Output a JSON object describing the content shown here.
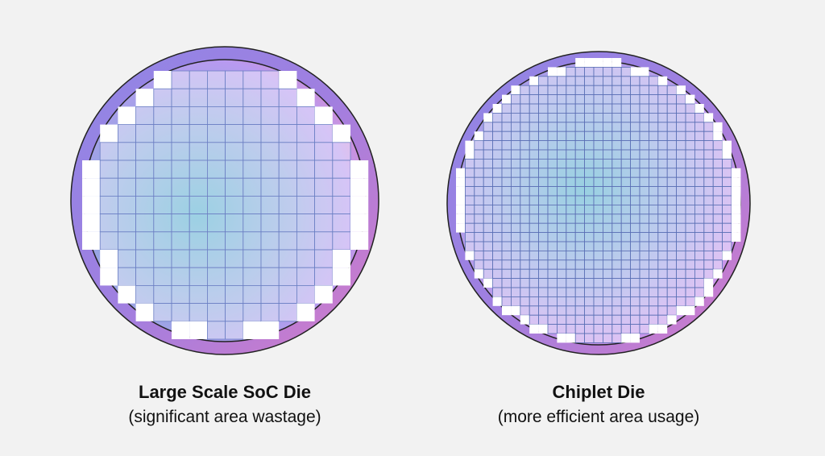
{
  "left": {
    "title": "Large Scale SoC Die",
    "subtitle": "(significant area wastage)"
  },
  "right": {
    "title": "Chiplet Die",
    "subtitle": "(more efficient area usage)"
  }
}
